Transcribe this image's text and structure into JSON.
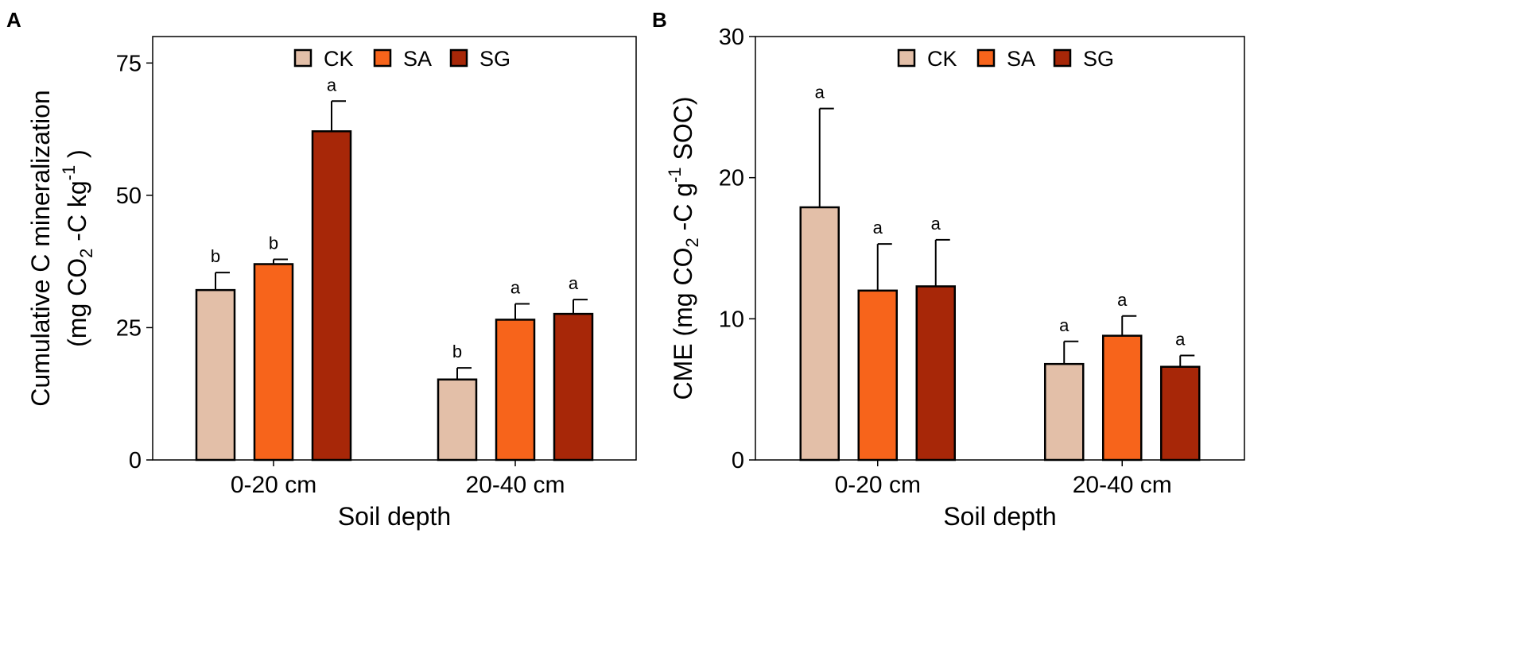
{
  "colors": {
    "CK": "#e3bfa8",
    "SA": "#f7641b",
    "SG": "#a72708",
    "edge": "#000000"
  },
  "legend": [
    "CK",
    "SA",
    "SG"
  ],
  "chart_data": [
    {
      "panel": "A",
      "type": "bar",
      "categories": [
        "0-20 cm",
        "20-40 cm"
      ],
      "series": [
        {
          "name": "CK",
          "values": [
            32.1,
            15.2
          ],
          "errors": [
            3.3,
            2.2
          ],
          "labels": [
            "b",
            "b"
          ]
        },
        {
          "name": "SA",
          "values": [
            37.0,
            26.5
          ],
          "errors": [
            0.9,
            3.0
          ],
          "labels": [
            "b",
            "a"
          ]
        },
        {
          "name": "SG",
          "values": [
            62.1,
            27.6
          ],
          "errors": [
            5.7,
            2.7
          ],
          "labels": [
            "a",
            "a"
          ]
        }
      ],
      "ylim": [
        0,
        80
      ],
      "yticks": [
        0,
        25,
        50,
        75
      ],
      "xlabel": "Soil depth",
      "ylabel_line1": "Cumulative C mineralization",
      "ylabel_line2": {
        "pre": "(mg CO",
        "sub": "2",
        "mid": " -C kg",
        "sup": "-1",
        "post": " )"
      }
    },
    {
      "panel": "B",
      "type": "bar",
      "categories": [
        "0-20 cm",
        "20-40 cm"
      ],
      "series": [
        {
          "name": "CK",
          "values": [
            17.9,
            6.8
          ],
          "errors": [
            7.0,
            1.6
          ],
          "labels": [
            "a",
            "a"
          ]
        },
        {
          "name": "SA",
          "values": [
            12.0,
            8.8
          ],
          "errors": [
            3.3,
            1.4
          ],
          "labels": [
            "a",
            "a"
          ]
        },
        {
          "name": "SG",
          "values": [
            12.3,
            6.6
          ],
          "errors": [
            3.3,
            0.8
          ],
          "labels": [
            "a",
            "a"
          ]
        }
      ],
      "ylim": [
        0,
        30
      ],
      "yticks": [
        0,
        10,
        20,
        30
      ],
      "xlabel": "Soil depth",
      "ylabel_line1": {
        "pre": "CME (mg CO",
        "sub": "2",
        "mid": " -C g",
        "sup": "-1",
        "post": " SOC)"
      }
    }
  ]
}
